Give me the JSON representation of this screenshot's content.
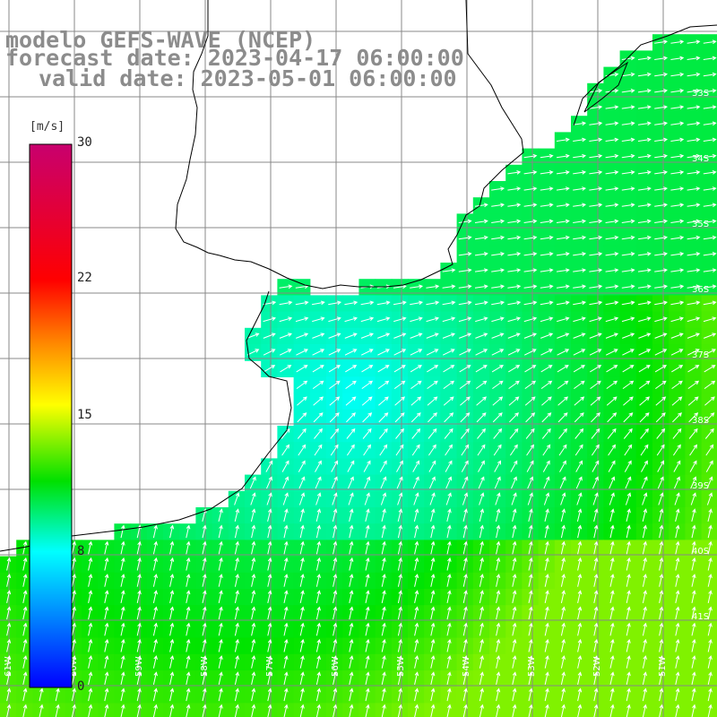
{
  "header": {
    "model": "modelo GEFS-WAVE (NCEP)",
    "forecast": "forecast date: 2023-04-17 06:00:00",
    "valid": "valid date: 2023-05-01 06:00:00"
  },
  "colorbar": {
    "unit": "[m/s]",
    "ticks": [
      "30",
      "22",
      "15",
      "8",
      "0"
    ],
    "colors": [
      "#c8006e",
      "#ff0000",
      "#ff9600",
      "#ffff00",
      "#00e400",
      "#00ffff",
      "#0000ff"
    ]
  },
  "map": {
    "lat_labels": [
      "33S",
      "34S",
      "35S",
      "36S",
      "37S",
      "38S",
      "39S",
      "40S",
      "41S"
    ],
    "lon_labels": [
      "61W",
      "60W",
      "59W",
      "58W",
      "57W",
      "56W",
      "55W",
      "54W",
      "53W",
      "52W",
      "51W"
    ],
    "land_color": "#ffffff",
    "grid_color": "#888888"
  }
}
